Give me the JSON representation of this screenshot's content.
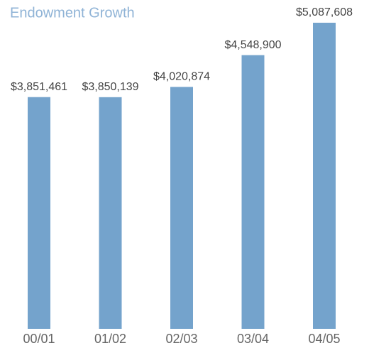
{
  "chart_data": {
    "type": "bar",
    "title": "Endowment Growth",
    "categories": [
      "00/01",
      "01/02",
      "02/03",
      "03/04",
      "04/05"
    ],
    "values": [
      3851461,
      3850139,
      4020874,
      4548900,
      5087608
    ],
    "value_labels": [
      "$3,851,461",
      "$3,850,139",
      "$4,020,874",
      "$4,548,900",
      "$5,087,608"
    ],
    "color": "#74a3cc"
  }
}
